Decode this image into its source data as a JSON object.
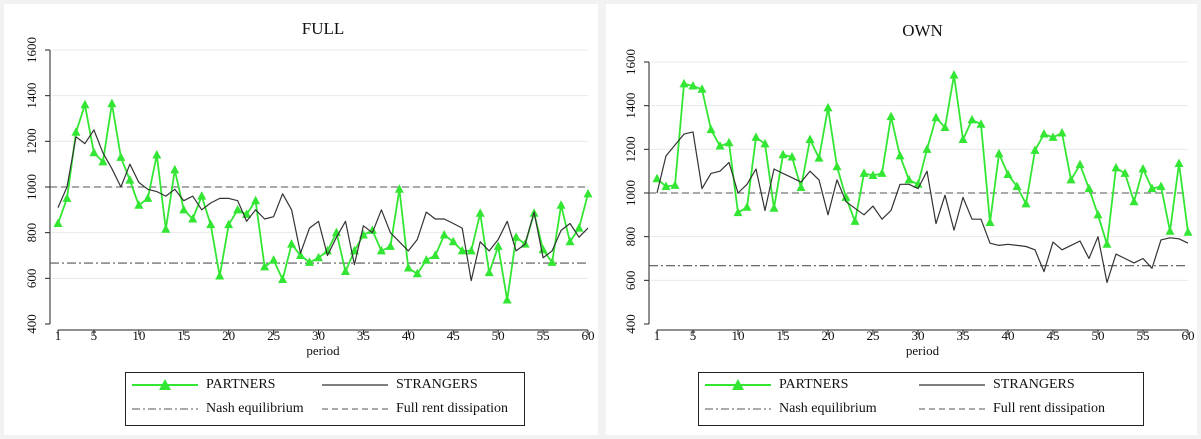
{
  "chart_data": [
    {
      "type": "line",
      "title": "FULL",
      "xlabel": "period",
      "ylabel": "",
      "xlim": [
        1,
        60
      ],
      "ylim": [
        400,
        1600
      ],
      "xticks": [
        1,
        5,
        10,
        15,
        20,
        25,
        30,
        35,
        40,
        45,
        50,
        55,
        60
      ],
      "yticks": [
        400,
        600,
        800,
        1000,
        1200,
        1400,
        1600
      ],
      "grid": "horizontal",
      "legend_placement": "bottom",
      "reference_lines": [
        {
          "name": "Nash equilibrium",
          "y": 667,
          "style": "dash-dot",
          "color": "#555555"
        },
        {
          "name": "Full rent dissipation",
          "y": 1000,
          "style": "dashed",
          "color": "#555555"
        }
      ],
      "series": [
        {
          "name": "PARTNERS",
          "color": "#33e633",
          "marker": "triangle",
          "values": [
            840,
            950,
            1240,
            1360,
            1150,
            1110,
            1365,
            1130,
            1030,
            920,
            950,
            1140,
            815,
            1075,
            900,
            860,
            960,
            835,
            610,
            835,
            900,
            880,
            940,
            650,
            680,
            595,
            750,
            700,
            670,
            690,
            720,
            800,
            630,
            720,
            790,
            810,
            720,
            740,
            990,
            645,
            620,
            680,
            700,
            790,
            760,
            720,
            720,
            885,
            625,
            740,
            505,
            780,
            750,
            885,
            725,
            670,
            920,
            760,
            820,
            970
          ]
        },
        {
          "name": "STRANGERS",
          "color": "#333333",
          "marker": "none",
          "values": [
            910,
            1000,
            1220,
            1190,
            1250,
            1150,
            1080,
            1000,
            1100,
            1020,
            990,
            980,
            960,
            990,
            940,
            960,
            900,
            930,
            950,
            950,
            940,
            850,
            900,
            860,
            870,
            970,
            900,
            710,
            820,
            850,
            700,
            780,
            850,
            660,
            830,
            800,
            900,
            800,
            760,
            720,
            770,
            890,
            860,
            860,
            840,
            820,
            590,
            760,
            720,
            770,
            850,
            720,
            750,
            890,
            690,
            720,
            810,
            840,
            780,
            820
          ]
        }
      ]
    },
    {
      "type": "line",
      "title": "OWN",
      "xlabel": "period",
      "ylabel": "",
      "xlim": [
        1,
        60
      ],
      "ylim": [
        400,
        1600
      ],
      "xticks": [
        1,
        5,
        10,
        15,
        20,
        25,
        30,
        35,
        40,
        45,
        50,
        55,
        60
      ],
      "yticks": [
        400,
        600,
        800,
        1000,
        1200,
        1400,
        1600
      ],
      "grid": "horizontal",
      "legend_placement": "bottom",
      "reference_lines": [
        {
          "name": "Nash equilibrium",
          "y": 667,
          "style": "dash-dot",
          "color": "#555555"
        },
        {
          "name": "Full rent dissipation",
          "y": 1000,
          "style": "dashed",
          "color": "#555555"
        }
      ],
      "series": [
        {
          "name": "PARTNERS",
          "color": "#33e633",
          "marker": "triangle",
          "values": [
            1065,
            1030,
            1035,
            1500,
            1490,
            1475,
            1290,
            1215,
            1230,
            910,
            935,
            1255,
            1225,
            930,
            1175,
            1165,
            1025,
            1245,
            1160,
            1390,
            1120,
            980,
            870,
            1090,
            1080,
            1090,
            1350,
            1170,
            1060,
            1040,
            1200,
            1345,
            1300,
            1540,
            1245,
            1335,
            1315,
            865,
            1180,
            1085,
            1030,
            950,
            1195,
            1270,
            1255,
            1275,
            1060,
            1130,
            1020,
            900,
            765,
            1115,
            1090,
            960,
            1110,
            1020,
            1030,
            825,
            1135,
            820
          ]
        },
        {
          "name": "STRANGERS",
          "color": "#333333",
          "marker": "none",
          "values": [
            1000,
            1170,
            1220,
            1270,
            1280,
            1020,
            1090,
            1100,
            1140,
            1000,
            1040,
            1110,
            920,
            1110,
            1090,
            1070,
            1050,
            1100,
            1060,
            900,
            1060,
            960,
            930,
            900,
            940,
            880,
            920,
            1040,
            1040,
            1020,
            1100,
            860,
            990,
            830,
            980,
            880,
            880,
            770,
            760,
            765,
            760,
            755,
            740,
            640,
            775,
            740,
            760,
            780,
            700,
            800,
            590,
            720,
            700,
            680,
            700,
            655,
            785,
            795,
            790,
            770
          ]
        }
      ]
    }
  ]
}
